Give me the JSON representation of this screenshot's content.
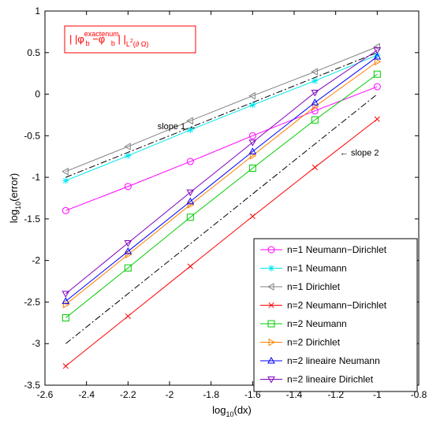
{
  "chart_data": {
    "type": "line",
    "xlabel": "log10(dx)",
    "ylabel": "log10(error)",
    "xlim": [
      -2.6,
      -0.8
    ],
    "ylim": [
      -3.5,
      1
    ],
    "xticks": [
      -2.6,
      -2.4,
      -2.2,
      -2.0,
      -1.8,
      -1.6,
      -1.4,
      -1.2,
      -1.0,
      -0.8
    ],
    "xtick_labels": [
      "-2.6",
      "-2.4",
      "-2.2",
      "-2",
      "-1.8",
      "-1.6",
      "-1.4",
      "-1.2",
      "-1",
      "-0.8"
    ],
    "yticks": [
      -3.5,
      -3,
      -2.5,
      -2,
      -1.5,
      -1,
      -0.5,
      0,
      0.5,
      1
    ],
    "ytick_labels": [
      "-3.5",
      "-3",
      "-2.5",
      "-2",
      "-1.5",
      "-1",
      "-0.5",
      "0",
      "0.5",
      "1"
    ],
    "grid": false,
    "legend_position": "bottom-right",
    "x": [
      -2.5,
      -2.2,
      -1.9,
      -1.6,
      -1.3,
      -1.0
    ],
    "series": [
      {
        "name": "n=1 Neumann−Dirichlet",
        "color": "#ff00ff",
        "marker": "circle",
        "values": [
          -1.4,
          -1.11,
          -0.81,
          -0.5,
          -0.2,
          0.09
        ]
      },
      {
        "name": "n=1 Neumann",
        "color": "#00e5ee",
        "marker": "star",
        "values": [
          -1.04,
          -0.74,
          -0.43,
          -0.13,
          0.16,
          0.47
        ]
      },
      {
        "name": "n=1 Dirichlet",
        "color": "#808080",
        "marker": "triangle-left",
        "values": [
          -0.93,
          -0.63,
          -0.32,
          -0.02,
          0.27,
          0.57
        ]
      },
      {
        "name": "n=2 Neumann−Dirichlet",
        "color": "#ff0000",
        "marker": "x",
        "values": [
          -3.27,
          -2.67,
          -2.07,
          -1.47,
          -0.88,
          -0.3
        ]
      },
      {
        "name": "n=2 Neumann",
        "color": "#00cc00",
        "marker": "square",
        "values": [
          -2.69,
          -2.09,
          -1.48,
          -0.89,
          -0.31,
          0.24
        ]
      },
      {
        "name": "n=2 Dirichlet",
        "color": "#ff8000",
        "marker": "triangle-right",
        "values": [
          -2.53,
          -1.93,
          -1.33,
          -0.74,
          -0.15,
          0.39
        ]
      },
      {
        "name": "n=2 lineaire Neumann",
        "color": "#0000ff",
        "marker": "triangle-up",
        "values": [
          -2.49,
          -1.89,
          -1.29,
          -0.69,
          -0.1,
          0.45
        ]
      },
      {
        "name": "n=2 lineaire Dirichlet",
        "color": "#8000c0",
        "marker": "triangle-down",
        "values": [
          -2.4,
          -1.79,
          -1.18,
          -0.58,
          0.02,
          0.53
        ]
      }
    ],
    "reference_lines": [
      {
        "color": "#000000",
        "style": "dash-dot",
        "x": [
          -2.5,
          -1.0
        ],
        "values": [
          -1.0,
          0.5
        ]
      },
      {
        "color": "#000000",
        "style": "dash-dot",
        "x": [
          -2.5,
          -1.0
        ],
        "values": [
          -3.0,
          0.0
        ]
      }
    ],
    "annotations": [
      {
        "text": "slope 1",
        "arrow": "→",
        "x": -1.87,
        "y": -0.42
      },
      {
        "text": "slope 2",
        "arrow": "←",
        "x": -1.18,
        "y": -0.74
      }
    ],
    "formula_box": {
      "pre": "| |φ",
      "sub1": "b",
      "sup1": "exacte",
      "mid": " −φ",
      "sub2": "b",
      "sup2": "num",
      "post": " | |",
      "sub3": "L",
      "sub3sup": "2",
      "sub3rest": "(∂ Ω)",
      "color": "#ff0000"
    }
  }
}
